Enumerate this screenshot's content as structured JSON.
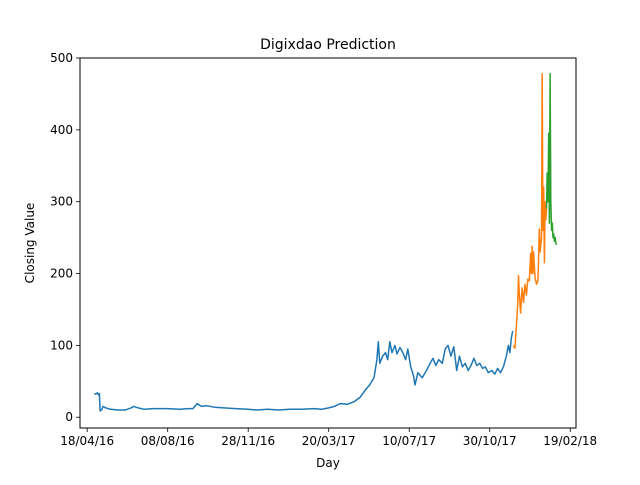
{
  "chart_data": {
    "type": "line",
    "title": "Digixdao Prediction",
    "xlabel": "Day",
    "ylabel": "Closing Value",
    "xlim": [
      "2016-04-08",
      "2018-02-27"
    ],
    "ylim": [
      -15,
      500
    ],
    "x_tick_labels": [
      "18/04/16",
      "08/08/16",
      "28/11/16",
      "20/03/17",
      "10/07/17",
      "30/10/17",
      "19/02/18"
    ],
    "x_tick_dates": [
      "2016-04-18",
      "2016-08-08",
      "2016-11-28",
      "2017-03-20",
      "2017-07-10",
      "2017-10-30",
      "2018-02-19"
    ],
    "y_ticks": [
      0,
      100,
      200,
      300,
      400,
      500
    ],
    "grid": false,
    "series": [
      {
        "color": "#1f77b4",
        "points": [
          [
            "2016-04-28",
            33
          ],
          [
            "2016-04-30",
            32
          ],
          [
            "2016-05-02",
            34
          ],
          [
            "2016-05-04",
            31
          ],
          [
            "2016-05-05",
            33
          ],
          [
            "2016-05-06",
            9
          ],
          [
            "2016-05-08",
            10
          ],
          [
            "2016-05-10",
            15
          ],
          [
            "2016-05-14",
            13
          ],
          [
            "2016-05-20",
            11
          ],
          [
            "2016-06-01",
            10
          ],
          [
            "2016-06-10",
            10
          ],
          [
            "2016-06-18",
            13
          ],
          [
            "2016-06-22",
            15
          ],
          [
            "2016-06-28",
            13
          ],
          [
            "2016-07-06",
            11
          ],
          [
            "2016-07-20",
            12
          ],
          [
            "2016-08-08",
            12
          ],
          [
            "2016-08-25",
            11
          ],
          [
            "2016-09-05",
            12
          ],
          [
            "2016-09-12",
            12
          ],
          [
            "2016-09-18",
            19
          ],
          [
            "2016-09-24",
            15
          ],
          [
            "2016-10-01",
            16
          ],
          [
            "2016-10-12",
            14
          ],
          [
            "2016-10-25",
            13
          ],
          [
            "2016-11-10",
            12
          ],
          [
            "2016-11-28",
            11
          ],
          [
            "2016-12-10",
            10
          ],
          [
            "2016-12-25",
            11
          ],
          [
            "2017-01-10",
            10
          ],
          [
            "2017-01-25",
            11
          ],
          [
            "2017-02-10",
            11
          ],
          [
            "2017-02-28",
            12
          ],
          [
            "2017-03-10",
            11
          ],
          [
            "2017-03-20",
            13
          ],
          [
            "2017-03-28",
            15
          ],
          [
            "2017-04-05",
            19
          ],
          [
            "2017-04-15",
            18
          ],
          [
            "2017-04-25",
            22
          ],
          [
            "2017-05-03",
            28
          ],
          [
            "2017-05-10",
            38
          ],
          [
            "2017-05-16",
            45
          ],
          [
            "2017-05-22",
            55
          ],
          [
            "2017-05-26",
            80
          ],
          [
            "2017-05-28",
            105
          ],
          [
            "2017-05-30",
            75
          ],
          [
            "2017-06-03",
            85
          ],
          [
            "2017-06-07",
            90
          ],
          [
            "2017-06-10",
            80
          ],
          [
            "2017-06-13",
            105
          ],
          [
            "2017-06-16",
            90
          ],
          [
            "2017-06-20",
            100
          ],
          [
            "2017-06-23",
            88
          ],
          [
            "2017-06-27",
            97
          ],
          [
            "2017-07-01",
            90
          ],
          [
            "2017-07-05",
            80
          ],
          [
            "2017-07-08",
            95
          ],
          [
            "2017-07-12",
            70
          ],
          [
            "2017-07-16",
            58
          ],
          [
            "2017-07-18",
            45
          ],
          [
            "2017-07-22",
            62
          ],
          [
            "2017-07-28",
            55
          ],
          [
            "2017-08-03",
            65
          ],
          [
            "2017-08-08",
            75
          ],
          [
            "2017-08-12",
            82
          ],
          [
            "2017-08-16",
            72
          ],
          [
            "2017-08-20",
            80
          ],
          [
            "2017-08-25",
            75
          ],
          [
            "2017-08-29",
            95
          ],
          [
            "2017-09-02",
            100
          ],
          [
            "2017-09-06",
            85
          ],
          [
            "2017-09-10",
            98
          ],
          [
            "2017-09-14",
            65
          ],
          [
            "2017-09-18",
            85
          ],
          [
            "2017-09-22",
            70
          ],
          [
            "2017-09-26",
            75
          ],
          [
            "2017-09-30",
            65
          ],
          [
            "2017-10-04",
            72
          ],
          [
            "2017-10-08",
            82
          ],
          [
            "2017-10-12",
            72
          ],
          [
            "2017-10-16",
            75
          ],
          [
            "2017-10-20",
            68
          ],
          [
            "2017-10-24",
            70
          ],
          [
            "2017-10-28",
            62
          ],
          [
            "2017-11-02",
            65
          ],
          [
            "2017-11-06",
            60
          ],
          [
            "2017-11-10",
            68
          ],
          [
            "2017-11-14",
            62
          ],
          [
            "2017-11-18",
            70
          ],
          [
            "2017-11-22",
            85
          ],
          [
            "2017-11-25",
            100
          ],
          [
            "2017-11-27",
            90
          ],
          [
            "2017-11-29",
            110
          ],
          [
            "2017-12-01",
            120
          ]
        ]
      },
      {
        "color": "#ff7f0e",
        "points": [
          [
            "2017-12-02",
            100
          ],
          [
            "2017-12-04",
            96
          ],
          [
            "2017-12-06",
            125
          ],
          [
            "2017-12-08",
            160
          ],
          [
            "2017-12-09",
            197
          ],
          [
            "2017-12-10",
            175
          ],
          [
            "2017-12-12",
            145
          ],
          [
            "2017-12-14",
            180
          ],
          [
            "2017-12-16",
            160
          ],
          [
            "2017-12-18",
            185
          ],
          [
            "2017-12-20",
            170
          ],
          [
            "2017-12-22",
            192
          ],
          [
            "2017-12-24",
            190
          ],
          [
            "2017-12-26",
            228
          ],
          [
            "2017-12-27",
            200
          ],
          [
            "2017-12-28",
            238
          ],
          [
            "2017-12-29",
            200
          ],
          [
            "2017-12-30",
            230
          ],
          [
            "2018-01-01",
            195
          ],
          [
            "2018-01-03",
            185
          ],
          [
            "2018-01-05",
            190
          ],
          [
            "2018-01-06",
            220
          ],
          [
            "2018-01-07",
            262
          ],
          [
            "2018-01-08",
            230
          ],
          [
            "2018-01-10",
            250
          ],
          [
            "2018-01-11",
            478
          ],
          [
            "2018-01-12",
            260
          ],
          [
            "2018-01-13",
            320
          ],
          [
            "2018-01-14",
            215
          ],
          [
            "2018-01-15",
            300
          ],
          [
            "2018-01-16",
            275
          ],
          [
            "2018-01-17",
            290
          ]
        ]
      },
      {
        "color": "#2ca02c",
        "points": [
          [
            "2018-01-17",
            290
          ],
          [
            "2018-01-18",
            340
          ],
          [
            "2018-01-19",
            300
          ],
          [
            "2018-01-20",
            395
          ],
          [
            "2018-01-21",
            270
          ],
          [
            "2018-01-22",
            478
          ],
          [
            "2018-01-23",
            300
          ],
          [
            "2018-01-24",
            260
          ],
          [
            "2018-01-25",
            270
          ],
          [
            "2018-01-26",
            250
          ],
          [
            "2018-01-27",
            255
          ],
          [
            "2018-01-28",
            245
          ],
          [
            "2018-01-29",
            250
          ],
          [
            "2018-01-30",
            242
          ],
          [
            "2018-01-31",
            240
          ]
        ]
      }
    ]
  }
}
